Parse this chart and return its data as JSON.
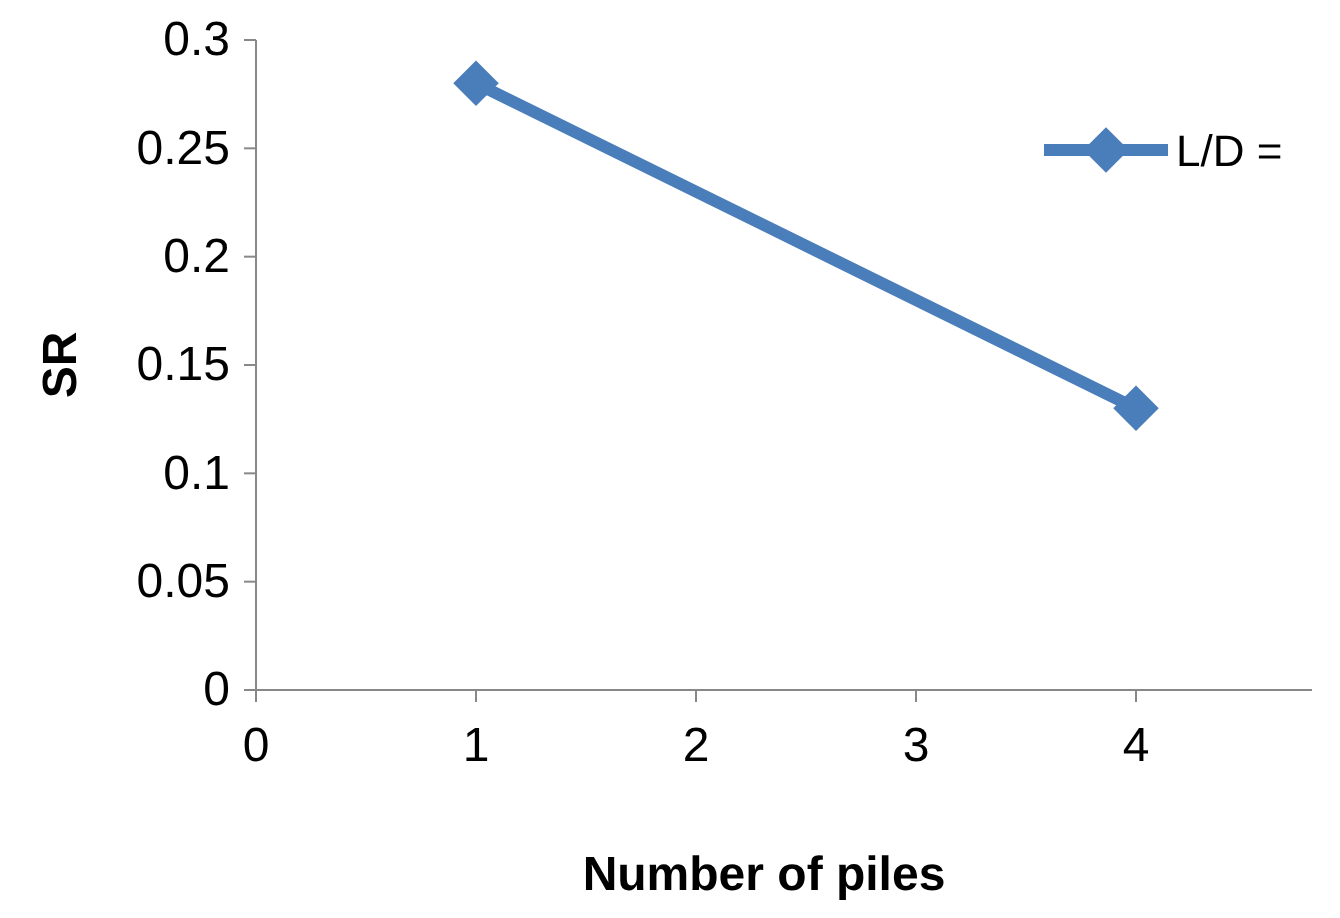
{
  "chart_data": {
    "type": "line",
    "xlabel": "Number of piles",
    "ylabel": "SR",
    "x": [
      1,
      4
    ],
    "series": [
      {
        "name": "L/D =",
        "color": "#4a7ebb",
        "values": [
          0.28,
          0.13
        ]
      }
    ],
    "xlim": [
      0,
      4.8
    ],
    "xticks": [
      0,
      1,
      2,
      3,
      4
    ],
    "ylim": [
      0,
      0.3
    ],
    "yticks": [
      0,
      0.05,
      0.1,
      0.15,
      0.2,
      0.25,
      0.3
    ],
    "grid": false,
    "legend": "right",
    "marker": "diamond",
    "line_style": "solid"
  }
}
